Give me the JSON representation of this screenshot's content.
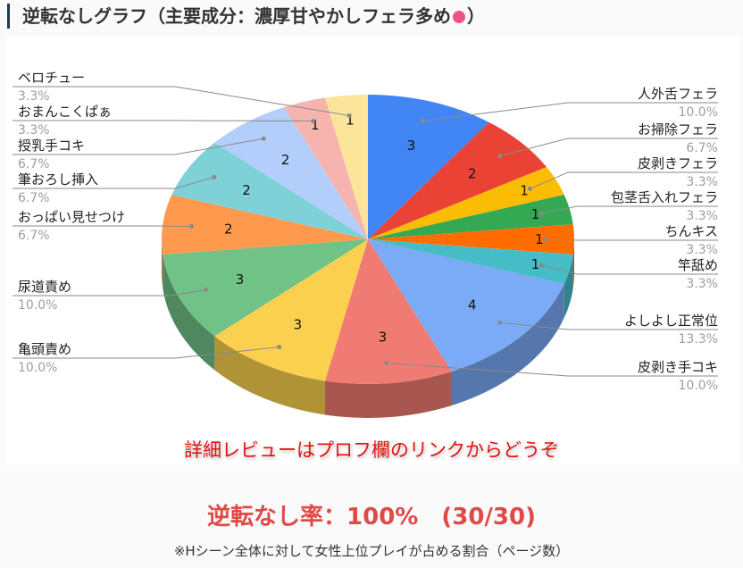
{
  "title": {
    "text": "逆転なしグラフ（主要成分：濃厚甘やかしフェラ多め",
    "emoji": "💓",
    "close": "）"
  },
  "chart_data": {
    "type": "pie",
    "style": "3d",
    "start": "top",
    "direction": "clockwise",
    "slices": [
      {
        "label": "人外舌フェラ",
        "value": 3,
        "percent": "10.0%",
        "color": "#4285f4"
      },
      {
        "label": "お掃除フェラ",
        "value": 2,
        "percent": "6.7%",
        "color": "#ea4335"
      },
      {
        "label": "皮剥きフェラ",
        "value": 1,
        "percent": "3.3%",
        "color": "#fbbc04"
      },
      {
        "label": "包茎舌入れフェラ",
        "value": 1,
        "percent": "3.3%",
        "color": "#34a853"
      },
      {
        "label": "ちんキス",
        "value": 1,
        "percent": "3.3%",
        "color": "#ff6d01"
      },
      {
        "label": "竿舐め",
        "value": 1,
        "percent": "3.3%",
        "color": "#46bdc6"
      },
      {
        "label": "よしよし正常位",
        "value": 4,
        "percent": "13.3%",
        "color": "#7baaf7"
      },
      {
        "label": "皮剥き手コキ",
        "value": 3,
        "percent": "10.0%",
        "color": "#f07b72"
      },
      {
        "label": "亀頭責め",
        "value": 3,
        "percent": "10.0%",
        "color": "#fcd04f"
      },
      {
        "label": "尿道責め",
        "value": 3,
        "percent": "10.0%",
        "color": "#71c287"
      },
      {
        "label": "おっぱい見せつけ",
        "value": 2,
        "percent": "6.7%",
        "color": "#ff994d"
      },
      {
        "label": "筆おろし挿入",
        "value": 2,
        "percent": "6.7%",
        "color": "#7ed1d7"
      },
      {
        "label": "授乳手コキ",
        "value": 2,
        "percent": "6.7%",
        "color": "#b3cefb"
      },
      {
        "label": "おまんこくぱぁ",
        "value": 1,
        "percent": "3.3%",
        "color": "#f7b4ae"
      },
      {
        "label": "ベロチュー",
        "value": 1,
        "percent": "3.3%",
        "color": "#fde49b"
      }
    ]
  },
  "note": "詳細レビューはプロフ欄のリンクからどうぞ",
  "rate": "逆転なし率：100%　(30/30)",
  "footnote": "※Hシーン全体に対して女性上位プレイが占める割合（ページ数）"
}
